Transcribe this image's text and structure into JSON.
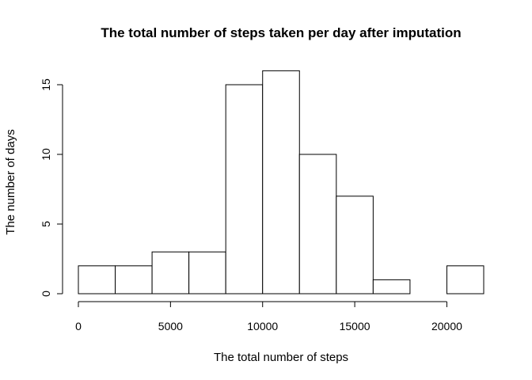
{
  "chart_data": {
    "type": "bar",
    "subtype": "histogram",
    "title": "The total number of steps taken per day after imputation",
    "xlabel": "The total number of steps",
    "ylabel": "The number of days",
    "bins": [
      {
        "from": 0,
        "to": 2000,
        "count": 2
      },
      {
        "from": 2000,
        "to": 4000,
        "count": 2
      },
      {
        "from": 4000,
        "to": 6000,
        "count": 3
      },
      {
        "from": 6000,
        "to": 8000,
        "count": 3
      },
      {
        "from": 8000,
        "to": 10000,
        "count": 15
      },
      {
        "from": 10000,
        "to": 12000,
        "count": 16
      },
      {
        "from": 12000,
        "to": 14000,
        "count": 10
      },
      {
        "from": 14000,
        "to": 16000,
        "count": 7
      },
      {
        "from": 16000,
        "to": 18000,
        "count": 1
      },
      {
        "from": 18000,
        "to": 20000,
        "count": 0
      },
      {
        "from": 20000,
        "to": 22000,
        "count": 2
      }
    ],
    "xlim": [
      0,
      22000
    ],
    "ylim": [
      0,
      16
    ],
    "x_ticks": [
      0,
      5000,
      10000,
      15000,
      20000
    ],
    "x_tick_labels": [
      "0",
      "5000",
      "10000",
      "15000",
      "20000"
    ],
    "y_ticks": [
      0,
      5,
      10,
      15
    ],
    "y_tick_labels": [
      "0",
      "5",
      "10",
      "15"
    ],
    "grid": false,
    "legend": "none",
    "bar_fill": "#ffffff",
    "bar_stroke": "#000000"
  }
}
